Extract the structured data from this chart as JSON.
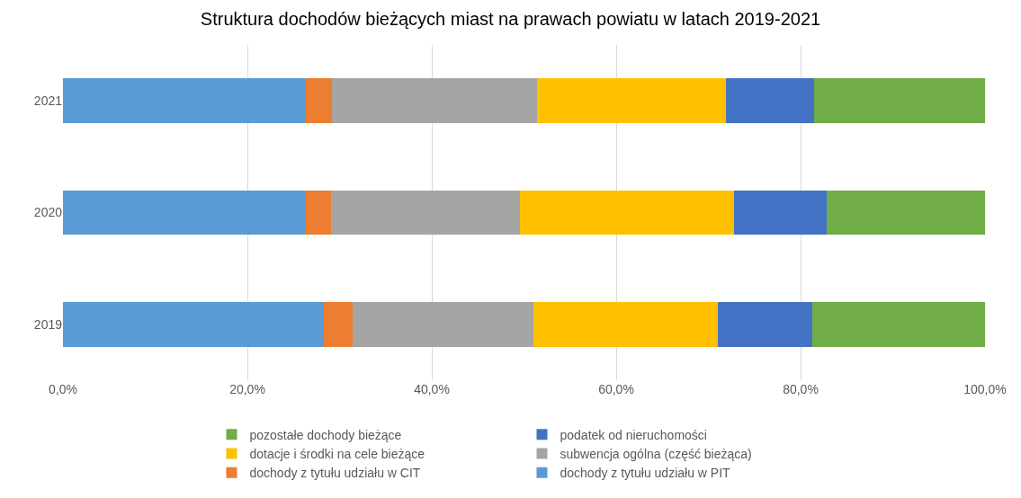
{
  "chart_data": {
    "type": "bar",
    "orientation": "horizontal",
    "stacked": true,
    "title": "Struktura dochodów bieżących miast na prawach powiatu w latach 2019-2021",
    "categories": [
      "2021",
      "2020",
      "2019"
    ],
    "series": [
      {
        "name": "dochody z tytułu udziału w PIT",
        "color": "#5b9bd5",
        "values": [
          26.3,
          26.3,
          28.3
        ]
      },
      {
        "name": "dochody z tytułu udziału w CIT",
        "color": "#ed7d31",
        "values": [
          2.9,
          2.8,
          3.1
        ]
      },
      {
        "name": "subwencja ogólna (część bieżąca)",
        "color": "#a5a5a5",
        "values": [
          22.2,
          20.5,
          19.6
        ]
      },
      {
        "name": "dotacje i środki na cele bieżące",
        "color": "#ffc000",
        "values": [
          20.5,
          23.2,
          20.0
        ]
      },
      {
        "name": "podatek od nieruchomości",
        "color": "#4472c4",
        "values": [
          9.6,
          10.0,
          10.3
        ]
      },
      {
        "name": "pozostałe dochody bieżące",
        "color": "#70ad47",
        "values": [
          18.5,
          17.2,
          18.7
        ]
      }
    ],
    "xlim": [
      0,
      100
    ],
    "xticks": [
      {
        "value": 0,
        "label": "0,0%"
      },
      {
        "value": 20,
        "label": "20,0%"
      },
      {
        "value": 40,
        "label": "40,0%"
      },
      {
        "value": 60,
        "label": "60,0%"
      },
      {
        "value": 80,
        "label": "80,0%"
      },
      {
        "value": 100,
        "label": "100,0%"
      }
    ],
    "grid": "x",
    "legend": "bottom"
  }
}
